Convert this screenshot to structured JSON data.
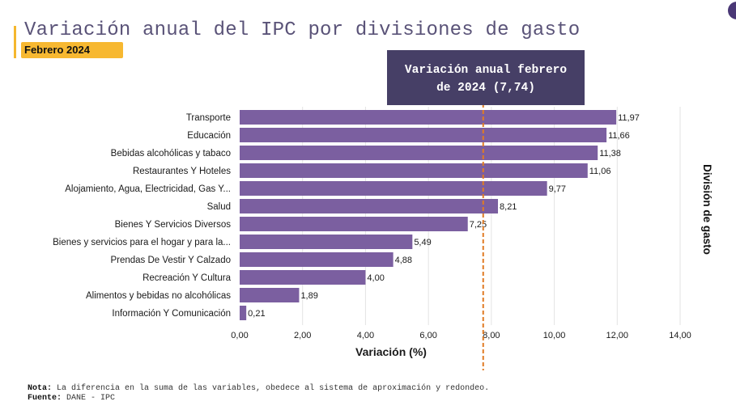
{
  "header": {
    "title": "Variación anual del IPC por divisiones de gasto",
    "subtitle": "Febrero 2024"
  },
  "annotation": {
    "line1": "Variación anual febrero",
    "line2": "de 2024 (7,74)"
  },
  "footer": {
    "note_label": "Nota:",
    "note_text": " La diferencia en la suma de las variables, obedece al sistema de aproximación y redondeo.",
    "source_label": "Fuente:",
    "source_text": " DANE - IPC"
  },
  "colors": {
    "bar": "#7b5fa0",
    "reference_line": "#e07b24",
    "annotation_bg": "#463f66",
    "subtitle_bg": "#f7b831",
    "title": "#5a5378"
  },
  "chart_data": {
    "type": "bar",
    "orientation": "horizontal",
    "title": "Variación anual del IPC por divisiones de gasto",
    "subtitle": "Febrero 2024",
    "xlabel": "Variación (%)",
    "ylabel": "División de gasto",
    "xlim": [
      0,
      14
    ],
    "xticks": [
      0,
      2,
      4,
      6,
      8,
      10,
      12,
      14
    ],
    "xtick_labels": [
      "0,00",
      "2,00",
      "4,00",
      "6,00",
      "8,00",
      "10,00",
      "12,00",
      "14,00"
    ],
    "grid": true,
    "categories": [
      "Transporte",
      "Educación",
      "Bebidas alcohólicas y tabaco",
      "Restaurantes Y Hoteles",
      "Alojamiento, Agua, Electricidad, Gas Y...",
      "Salud",
      "Bienes Y Servicios Diversos",
      "Bienes y servicios para el hogar y para la...",
      "Prendas De Vestir Y Calzado",
      "Recreación Y Cultura",
      "Alimentos y bebidas no alcohólicas",
      "Información Y Comunicación"
    ],
    "values": [
      11.97,
      11.66,
      11.38,
      11.06,
      9.77,
      8.21,
      7.25,
      5.49,
      4.88,
      4.0,
      1.89,
      0.21
    ],
    "value_labels": [
      "11,97",
      "11,66",
      "11,38",
      "11,06",
      "9,77",
      "8,21",
      "7,25",
      "5,49",
      "4,88",
      "4,00",
      "1,89",
      "0,21"
    ],
    "reference_line": {
      "value": 7.74,
      "label": "Variación anual febrero de 2024 (7,74)",
      "style": "dashed"
    }
  }
}
